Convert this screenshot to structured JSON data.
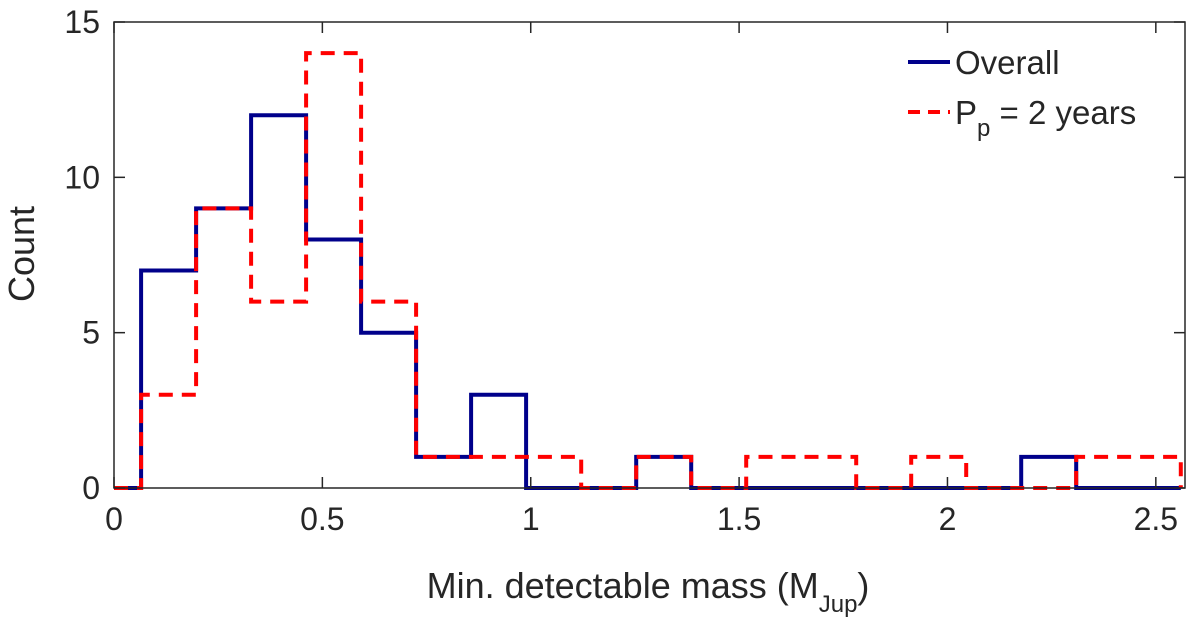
{
  "chart_data": {
    "type": "histogram",
    "title": "",
    "xlabel": "Min. detectable mass (M",
    "xlabel_sub": "Jup",
    "xlabel_close": ")",
    "ylabel": "Count",
    "xlim": [
      0,
      2.57
    ],
    "ylim": [
      0,
      15
    ],
    "x_ticks": [
      0,
      0.5,
      1,
      1.5,
      2,
      2.5
    ],
    "x_tick_labels": [
      "0",
      "0.5",
      "1",
      "1.5",
      "2",
      "2.5"
    ],
    "y_ticks": [
      0,
      5,
      10,
      15
    ],
    "y_tick_labels": [
      "0",
      "5",
      "10",
      "15"
    ],
    "grid": false,
    "legend_position": "top-right",
    "series": [
      {
        "name": "Overall",
        "legend_label": "Overall",
        "color": "#00008b",
        "style": "solid",
        "edges": [
          0,
          0.065,
          0.197,
          0.329,
          0.461,
          0.593,
          0.725,
          0.857,
          0.989,
          1.121,
          1.253,
          1.385,
          1.517,
          1.649,
          1.781,
          1.913,
          2.045,
          2.177,
          2.309,
          2.56
        ],
        "counts": [
          0,
          7,
          9,
          12,
          8,
          5,
          1,
          3,
          0,
          0,
          1,
          0,
          0,
          0,
          0,
          0,
          0,
          1,
          0
        ]
      },
      {
        "name": "P_p = 2 years",
        "legend_label": "P",
        "legend_sub": "p",
        "legend_suffix": " = 2 years",
        "color": "#ff0000",
        "style": "dashed",
        "edges": [
          0,
          0.065,
          0.197,
          0.329,
          0.461,
          0.593,
          0.725,
          0.857,
          0.989,
          1.121,
          1.253,
          1.385,
          1.517,
          1.649,
          1.781,
          1.913,
          2.045,
          2.177,
          2.309,
          2.56
        ],
        "counts": [
          0,
          3,
          9,
          6,
          14,
          6,
          1,
          1,
          1,
          0,
          1,
          0,
          1,
          1,
          0,
          1,
          0,
          0,
          1
        ]
      }
    ]
  }
}
